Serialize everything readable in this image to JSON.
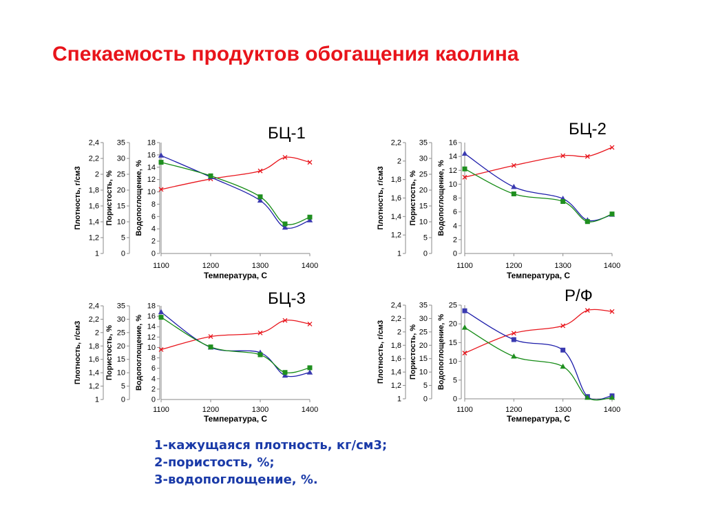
{
  "page": {
    "title": "Спекаемость продуктов обогащения каолина"
  },
  "legend": {
    "items": [
      "1-кажущаяся плотность, кг/см3;",
      "2-пористость, %;",
      "3-водопоглощение, %."
    ]
  },
  "colors": {
    "density": "#e8141b",
    "porosity": "#1c1caa",
    "water": "#138a13",
    "porosity_marker": "#3a3ab0",
    "water_marker": "#1f8f1f",
    "title": "#e8141b",
    "legend": "#1a3aa8"
  },
  "chart_data": [
    {
      "label": "БЦ-1",
      "type": "line",
      "x": [
        1100,
        1200,
        1300,
        1350,
        1400
      ],
      "xlabel": "Температура, С",
      "xlim": [
        1100,
        1400
      ],
      "xticks": [
        "1100",
        "1200",
        "1300",
        "1400"
      ],
      "axes": [
        {
          "label": "Плотность, г/см3",
          "min": 1,
          "max": 2.4,
          "ticks": [
            "1",
            "1,2",
            "1,4",
            "1,6",
            "1,8",
            "2",
            "2,2",
            "2,4"
          ]
        },
        {
          "label": "Пористость, %",
          "min": 0,
          "max": 35,
          "ticks": [
            "0",
            "5",
            "10",
            "15",
            "20",
            "25",
            "30",
            "35"
          ]
        },
        {
          "label": "Водопоглощение, %",
          "min": 0,
          "max": 18,
          "ticks": [
            "0",
            "2",
            "4",
            "6",
            "8",
            "10",
            "12",
            "14",
            "16",
            "18"
          ]
        }
      ],
      "series": [
        {
          "key": "density",
          "marker": "x",
          "values": [
            10.4,
            12.1,
            13.4,
            15.6,
            14.8
          ]
        },
        {
          "key": "porosity",
          "marker": "triangle",
          "values": [
            15.9,
            12.4,
            8.6,
            4.2,
            5.4
          ]
        },
        {
          "key": "water",
          "marker": "square",
          "values": [
            14.8,
            12.6,
            9.2,
            4.8,
            5.9
          ]
        }
      ]
    },
    {
      "label": "БЦ-2",
      "type": "line",
      "x": [
        1100,
        1200,
        1300,
        1350,
        1400
      ],
      "xlabel": "Температура, С",
      "xlim": [
        1100,
        1400
      ],
      "xticks": [
        "1100",
        "1200",
        "1300",
        "1400"
      ],
      "axes": [
        {
          "label": "Плотность, г/см3",
          "min": 1,
          "max": 2.2,
          "ticks": [
            "1",
            "1,2",
            "1,4",
            "1,6",
            "1,8",
            "2",
            "2,2"
          ]
        },
        {
          "label": "Пористость, %",
          "min": 0,
          "max": 35,
          "ticks": [
            "0",
            "5",
            "10",
            "15",
            "20",
            "25",
            "30",
            "35"
          ]
        },
        {
          "label": "Водопоглощение, %",
          "min": 0,
          "max": 16,
          "ticks": [
            "0",
            "2",
            "4",
            "6",
            "8",
            "10",
            "12",
            "14",
            "16"
          ]
        }
      ],
      "series": [
        {
          "key": "density",
          "marker": "x",
          "values": [
            11,
            12.7,
            14.1,
            14,
            15.3
          ]
        },
        {
          "key": "porosity",
          "marker": "triangle",
          "values": [
            14.4,
            9.6,
            7.9,
            4.8,
            5.6
          ]
        },
        {
          "key": "water",
          "marker": "square",
          "values": [
            12.2,
            8.6,
            7.5,
            4.6,
            5.7
          ]
        }
      ]
    },
    {
      "label": "БЦ-3",
      "type": "line",
      "x": [
        1100,
        1200,
        1300,
        1350,
        1400
      ],
      "xlabel": "Температура, С",
      "xlim": [
        1100,
        1400
      ],
      "xticks": [
        "1100",
        "1200",
        "1300",
        "1400"
      ],
      "axes": [
        {
          "label": "Плотность, г/см3",
          "min": 1,
          "max": 2.4,
          "ticks": [
            "1",
            "1,2",
            "1,4",
            "1,6",
            "1,8",
            "2",
            "2,2",
            "2,4"
          ]
        },
        {
          "label": "Пористость, %",
          "min": 0,
          "max": 35,
          "ticks": [
            "0",
            "5",
            "10",
            "15",
            "20",
            "25",
            "30",
            "35"
          ]
        },
        {
          "label": "Водопоглощение, %",
          "min": 0,
          "max": 18,
          "ticks": [
            "0",
            "2",
            "4",
            "6",
            "8",
            "10",
            "12",
            "14",
            "16",
            "18"
          ]
        }
      ],
      "series": [
        {
          "key": "density",
          "marker": "x",
          "values": [
            9.6,
            12.1,
            12.8,
            15.2,
            14.5
          ]
        },
        {
          "key": "porosity",
          "marker": "triangle",
          "values": [
            16.8,
            10,
            9,
            4.6,
            5.2
          ]
        },
        {
          "key": "water",
          "marker": "square",
          "values": [
            15.8,
            10.1,
            8.6,
            5.2,
            6.1
          ]
        }
      ]
    },
    {
      "label": "Р/Ф",
      "type": "line",
      "x": [
        1100,
        1200,
        1300,
        1350,
        1400
      ],
      "xlabel": "Температура, С",
      "xlim": [
        1100,
        1400
      ],
      "xticks": [
        "1100",
        "1200",
        "1300",
        "1400"
      ],
      "axes": [
        {
          "label": "Плотность, г/см3",
          "min": 1,
          "max": 2.4,
          "ticks": [
            "1",
            "1,2",
            "1,4",
            "1,6",
            "1,8",
            "2",
            "2,2",
            "2,4"
          ]
        },
        {
          "label": "Пористость, %",
          "min": 0,
          "max": 35,
          "ticks": [
            "0",
            "5",
            "10",
            "15",
            "20",
            "25",
            "30",
            "35"
          ]
        },
        {
          "label": "Водопоглощение, %",
          "min": 0,
          "max": 25,
          "ticks": [
            "0",
            "5",
            "10",
            "15",
            "20",
            "25"
          ]
        }
      ],
      "series": [
        {
          "key": "density",
          "marker": "x",
          "values": [
            12.2,
            17.5,
            19.5,
            23.6,
            23.3
          ]
        },
        {
          "key": "porosity",
          "marker": "square",
          "values": [
            23.5,
            15.8,
            13,
            0.6,
            0.8
          ]
        },
        {
          "key": "water",
          "marker": "triangle",
          "values": [
            19,
            11.3,
            8.6,
            0.3,
            0.3
          ]
        }
      ]
    }
  ]
}
